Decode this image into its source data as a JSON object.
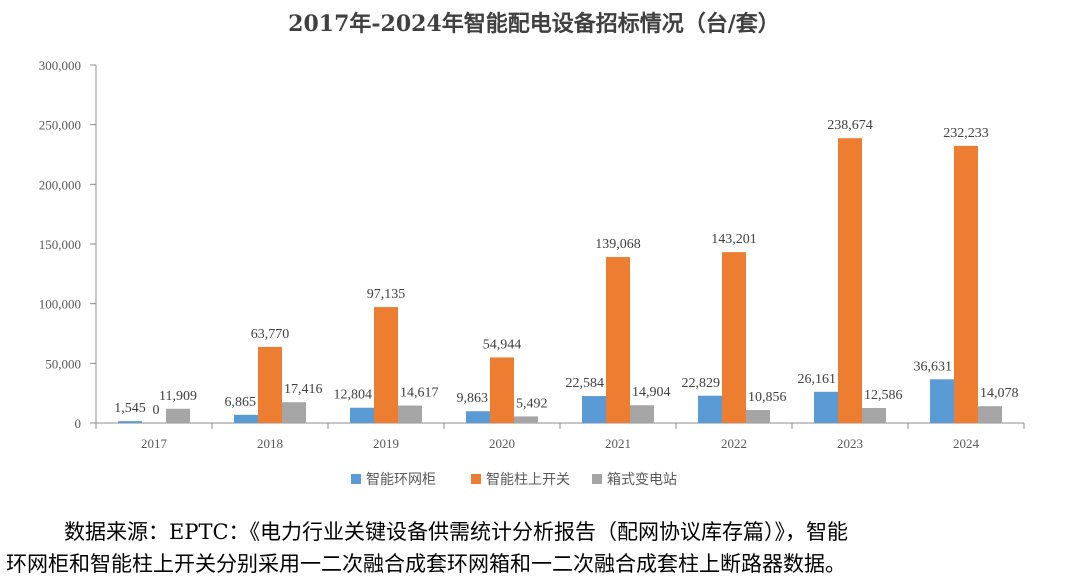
{
  "chart_data": {
    "type": "bar",
    "title": "2017年-2024年智能配电设备招标情况（台/套）",
    "categories": [
      "2017",
      "2018",
      "2019",
      "2020",
      "2021",
      "2022",
      "2023",
      "2024"
    ],
    "series": [
      {
        "name": "智能环网柜",
        "color": "#5b9bd5",
        "values": [
          1545,
          6865,
          12804,
          9863,
          22584,
          22829,
          26161,
          36631
        ],
        "labels": [
          "1,545",
          "6,865",
          "12,804",
          "9,863",
          "22,584",
          "22,829",
          "26,161",
          "36,631"
        ]
      },
      {
        "name": "智能柱上开关",
        "color": "#ed7d31",
        "values": [
          0,
          63770,
          97135,
          54944,
          139068,
          143201,
          238674,
          232233
        ],
        "labels": [
          "0",
          "63,770",
          "97,135",
          "54,944",
          "139,068",
          "143,201",
          "238,674",
          "232,233"
        ]
      },
      {
        "name": "箱式变电站",
        "color": "#a5a5a5",
        "values": [
          11909,
          17416,
          14617,
          5492,
          14904,
          10856,
          12586,
          14078
        ],
        "labels": [
          "11,909",
          "17,416",
          "14,617",
          "5,492",
          "14,904",
          "10,856",
          "12,586",
          "14,078"
        ]
      }
    ],
    "ylim": [
      0,
      300000
    ],
    "yticks": [
      0,
      50000,
      100000,
      150000,
      200000,
      250000,
      300000
    ],
    "ytick_labels": [
      "0",
      "50,000",
      "100,000",
      "150,000",
      "200,000",
      "250,000",
      "300,000"
    ],
    "grid": false,
    "legend_position": "bottom"
  },
  "source_note": {
    "line1": "数据来源：EPTC：《电力行业关键设备供需统计分析报告（配网协议库存篇）》，智能",
    "line2": "环网柜和智能柱上开关分别采用一二次融合成套环网箱和一二次融合成套柱上断路器数据。"
  }
}
